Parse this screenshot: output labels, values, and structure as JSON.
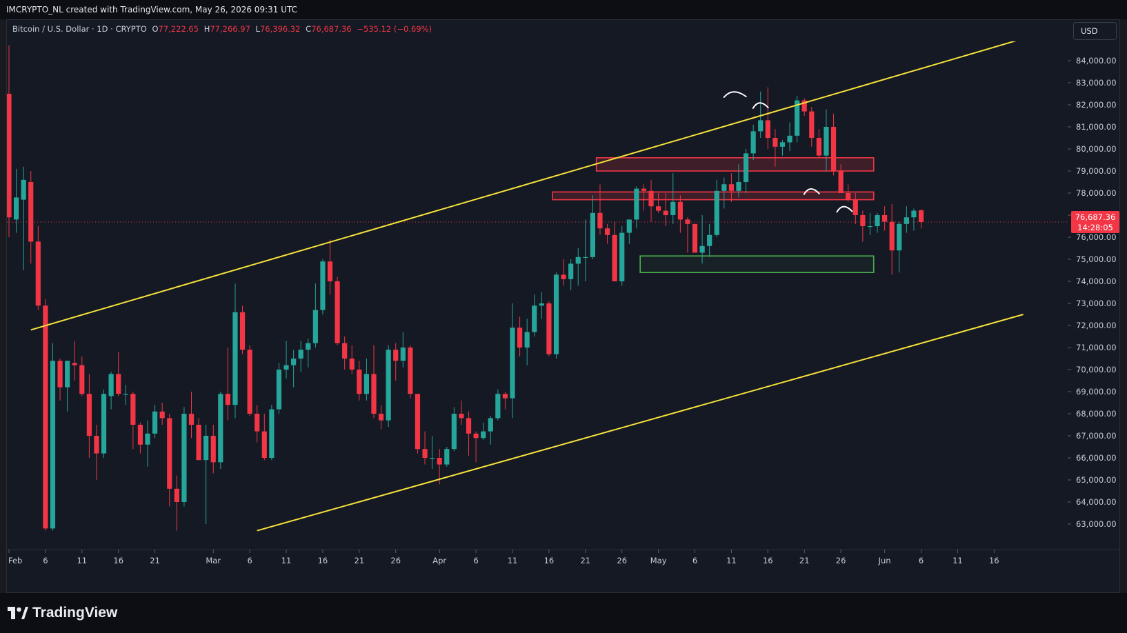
{
  "header": {
    "credit": "IMCRYPTO_NL created with TradingView.com, May 26, 2026 09:31 UTC"
  },
  "legend": {
    "symbol": "Bitcoin / U.S. Dollar · 1D · CRYPTO",
    "open_label": "O",
    "open": "77,222.65",
    "high_label": "H",
    "high": "77,266.97",
    "low_label": "L",
    "low": "76,396.32",
    "close_label": "C",
    "close": "76,687.36",
    "change": "−535.12 (−0.69%)"
  },
  "currency_button": "USD",
  "last_price": {
    "price": "76,687.36",
    "countdown": "14:28:05"
  },
  "footer": {
    "brand": "TradingView"
  },
  "colors": {
    "up": "#26a69a",
    "down": "#f23645",
    "channel": "#f7e33b",
    "resistance": "#f23645",
    "support": "#4caf50",
    "background": "#151924"
  },
  "chart_data": {
    "type": "candlestick",
    "title": "",
    "ylim": [
      62500,
      84600
    ],
    "y_ticks": [
      {
        "v": 63000,
        "label": "63,000.00"
      },
      {
        "v": 64000,
        "label": "64,000.00"
      },
      {
        "v": 65000,
        "label": "65,000.00"
      },
      {
        "v": 66000,
        "label": "66,000.00"
      },
      {
        "v": 67000,
        "label": "67,000.00"
      },
      {
        "v": 68000,
        "label": "68,000.00"
      },
      {
        "v": 69000,
        "label": "69,000.00"
      },
      {
        "v": 70000,
        "label": "70,000.00"
      },
      {
        "v": 71000,
        "label": "71,000.00"
      },
      {
        "v": 72000,
        "label": "72,000.00"
      },
      {
        "v": 73000,
        "label": "73,000.00"
      },
      {
        "v": 74000,
        "label": "74,000.00"
      },
      {
        "v": 75000,
        "label": "75,000.00"
      },
      {
        "v": 76000,
        "label": "76,000.00"
      },
      {
        "v": 77000,
        "label": "77,000.00"
      },
      {
        "v": 78000,
        "label": "78,000.00"
      },
      {
        "v": 79000,
        "label": "79,000.00"
      },
      {
        "v": 80000,
        "label": "80,000.00"
      },
      {
        "v": 81000,
        "label": "81,000.00"
      },
      {
        "v": 82000,
        "label": "82,000.00"
      },
      {
        "v": 83000,
        "label": "83,000.00"
      },
      {
        "v": 84000,
        "label": "84,000.00"
      }
    ],
    "x_ticks": [
      {
        "d": 0,
        "label": "Feb"
      },
      {
        "d": 5,
        "label": "6"
      },
      {
        "d": 10,
        "label": "11"
      },
      {
        "d": 15,
        "label": "16"
      },
      {
        "d": 20,
        "label": "21"
      },
      {
        "d": 28,
        "label": "Mar"
      },
      {
        "d": 33,
        "label": "6"
      },
      {
        "d": 38,
        "label": "11"
      },
      {
        "d": 43,
        "label": "16"
      },
      {
        "d": 48,
        "label": "21"
      },
      {
        "d": 53,
        "label": "26"
      },
      {
        "d": 59,
        "label": "Apr"
      },
      {
        "d": 64,
        "label": "6"
      },
      {
        "d": 69,
        "label": "11"
      },
      {
        "d": 74,
        "label": "16"
      },
      {
        "d": 79,
        "label": "21"
      },
      {
        "d": 84,
        "label": "26"
      },
      {
        "d": 89,
        "label": "May"
      },
      {
        "d": 94,
        "label": "6"
      },
      {
        "d": 99,
        "label": "11"
      },
      {
        "d": 104,
        "label": "16"
      },
      {
        "d": 109,
        "label": "21"
      },
      {
        "d": 114,
        "label": "26"
      },
      {
        "d": 120,
        "label": "Jun"
      },
      {
        "d": 125,
        "label": "6"
      },
      {
        "d": 130,
        "label": "11"
      },
      {
        "d": 135,
        "label": "16"
      }
    ],
    "candles": [
      {
        "o": 82500,
        "h": 84700,
        "l": 76000,
        "c": 76900
      },
      {
        "o": 76800,
        "h": 79100,
        "l": 76200,
        "c": 77800
      },
      {
        "o": 77700,
        "h": 79200,
        "l": 74500,
        "c": 78600
      },
      {
        "o": 78500,
        "h": 79000,
        "l": 74800,
        "c": 75800
      },
      {
        "o": 75800,
        "h": 76500,
        "l": 72700,
        "c": 72900
      },
      {
        "o": 72900,
        "h": 73200,
        "l": 62700,
        "c": 62800
      },
      {
        "o": 62800,
        "h": 71200,
        "l": 62700,
        "c": 70400
      },
      {
        "o": 70400,
        "h": 70500,
        "l": 68600,
        "c": 69200
      },
      {
        "o": 69200,
        "h": 70400,
        "l": 68100,
        "c": 70400
      },
      {
        "o": 70300,
        "h": 71300,
        "l": 69500,
        "c": 70200
      },
      {
        "o": 70200,
        "h": 70600,
        "l": 68800,
        "c": 68900
      },
      {
        "o": 68900,
        "h": 69800,
        "l": 66000,
        "c": 67000
      },
      {
        "o": 67000,
        "h": 67500,
        "l": 65000,
        "c": 66200
      },
      {
        "o": 66200,
        "h": 69100,
        "l": 66000,
        "c": 68900
      },
      {
        "o": 68800,
        "h": 69900,
        "l": 68200,
        "c": 69800
      },
      {
        "o": 69800,
        "h": 70800,
        "l": 68800,
        "c": 68900
      },
      {
        "o": 68900,
        "h": 69300,
        "l": 68400,
        "c": 68900
      },
      {
        "o": 68900,
        "h": 69000,
        "l": 66400,
        "c": 67500
      },
      {
        "o": 67500,
        "h": 67600,
        "l": 66200,
        "c": 66600
      },
      {
        "o": 66600,
        "h": 67700,
        "l": 65600,
        "c": 67100
      },
      {
        "o": 67100,
        "h": 68400,
        "l": 66900,
        "c": 68100
      },
      {
        "o": 68100,
        "h": 68500,
        "l": 67500,
        "c": 67800
      },
      {
        "o": 67800,
        "h": 68000,
        "l": 63800,
        "c": 64600
      },
      {
        "o": 64600,
        "h": 65200,
        "l": 62700,
        "c": 64000
      },
      {
        "o": 64000,
        "h": 68300,
        "l": 63800,
        "c": 68000
      },
      {
        "o": 68000,
        "h": 69000,
        "l": 66900,
        "c": 67500
      },
      {
        "o": 67500,
        "h": 67800,
        "l": 65900,
        "c": 65900
      },
      {
        "o": 65900,
        "h": 67500,
        "l": 63000,
        "c": 67000
      },
      {
        "o": 67000,
        "h": 67500,
        "l": 65300,
        "c": 65800
      },
      {
        "o": 65800,
        "h": 69000,
        "l": 65500,
        "c": 68900
      },
      {
        "o": 68900,
        "h": 71000,
        "l": 67700,
        "c": 68400
      },
      {
        "o": 68400,
        "h": 73900,
        "l": 67800,
        "c": 72600
      },
      {
        "o": 72600,
        "h": 72900,
        "l": 70700,
        "c": 70900
      },
      {
        "o": 70900,
        "h": 71100,
        "l": 67900,
        "c": 68000
      },
      {
        "o": 68000,
        "h": 68400,
        "l": 66700,
        "c": 67200
      },
      {
        "o": 67200,
        "h": 68000,
        "l": 65900,
        "c": 66000
      },
      {
        "o": 66000,
        "h": 68400,
        "l": 65900,
        "c": 68200
      },
      {
        "o": 68200,
        "h": 70300,
        "l": 68000,
        "c": 70000
      },
      {
        "o": 70000,
        "h": 71300,
        "l": 69600,
        "c": 70200
      },
      {
        "o": 70200,
        "h": 70900,
        "l": 69200,
        "c": 70500
      },
      {
        "o": 70500,
        "h": 71300,
        "l": 69900,
        "c": 70900
      },
      {
        "o": 70900,
        "h": 71400,
        "l": 70100,
        "c": 71200
      },
      {
        "o": 71200,
        "h": 73900,
        "l": 71000,
        "c": 72700
      },
      {
        "o": 72700,
        "h": 75000,
        "l": 72500,
        "c": 74900
      },
      {
        "o": 74900,
        "h": 75900,
        "l": 73400,
        "c": 74000
      },
      {
        "o": 74000,
        "h": 74200,
        "l": 71100,
        "c": 71200
      },
      {
        "o": 71200,
        "h": 71500,
        "l": 70000,
        "c": 70500
      },
      {
        "o": 70500,
        "h": 71100,
        "l": 69800,
        "c": 70000
      },
      {
        "o": 70000,
        "h": 70400,
        "l": 68600,
        "c": 68900
      },
      {
        "o": 68900,
        "h": 70500,
        "l": 68600,
        "c": 69800
      },
      {
        "o": 69800,
        "h": 71100,
        "l": 67800,
        "c": 68000
      },
      {
        "o": 68000,
        "h": 68400,
        "l": 67300,
        "c": 67700
      },
      {
        "o": 67700,
        "h": 71100,
        "l": 67400,
        "c": 70900
      },
      {
        "o": 70900,
        "h": 71200,
        "l": 69500,
        "c": 70400
      },
      {
        "o": 70400,
        "h": 71700,
        "l": 70100,
        "c": 71000
      },
      {
        "o": 71000,
        "h": 71100,
        "l": 68700,
        "c": 68900
      },
      {
        "o": 68900,
        "h": 68900,
        "l": 66200,
        "c": 66400
      },
      {
        "o": 66400,
        "h": 67200,
        "l": 65700,
        "c": 66000
      },
      {
        "o": 66000,
        "h": 67000,
        "l": 65500,
        "c": 66000
      },
      {
        "o": 66000,
        "h": 66400,
        "l": 64800,
        "c": 65700
      },
      {
        "o": 65700,
        "h": 66500,
        "l": 65600,
        "c": 66400
      },
      {
        "o": 66400,
        "h": 68300,
        "l": 66300,
        "c": 68000
      },
      {
        "o": 68000,
        "h": 68600,
        "l": 67500,
        "c": 67800
      },
      {
        "o": 67800,
        "h": 68100,
        "l": 66100,
        "c": 67100
      },
      {
        "o": 67100,
        "h": 67200,
        "l": 65800,
        "c": 66900
      },
      {
        "o": 66900,
        "h": 67600,
        "l": 66800,
        "c": 67200
      },
      {
        "o": 67200,
        "h": 67900,
        "l": 66600,
        "c": 67800
      },
      {
        "o": 67800,
        "h": 69100,
        "l": 67700,
        "c": 68900
      },
      {
        "o": 68900,
        "h": 69000,
        "l": 68200,
        "c": 68700
      },
      {
        "o": 68700,
        "h": 73000,
        "l": 67800,
        "c": 71900
      },
      {
        "o": 71900,
        "h": 72400,
        "l": 70600,
        "c": 71000
      },
      {
        "o": 71000,
        "h": 72300,
        "l": 70200,
        "c": 71700
      },
      {
        "o": 71700,
        "h": 73400,
        "l": 71500,
        "c": 72900
      },
      {
        "o": 72900,
        "h": 73500,
        "l": 72300,
        "c": 73000
      },
      {
        "o": 73000,
        "h": 73100,
        "l": 70600,
        "c": 70700
      },
      {
        "o": 70700,
        "h": 74400,
        "l": 70500,
        "c": 74300
      },
      {
        "o": 74300,
        "h": 75000,
        "l": 73800,
        "c": 74100
      },
      {
        "o": 74100,
        "h": 75000,
        "l": 73600,
        "c": 74800
      },
      {
        "o": 74800,
        "h": 75500,
        "l": 73800,
        "c": 75100
      },
      {
        "o": 75100,
        "h": 76800,
        "l": 74000,
        "c": 75100
      },
      {
        "o": 75100,
        "h": 77900,
        "l": 75000,
        "c": 77100
      },
      {
        "o": 77100,
        "h": 78400,
        "l": 76100,
        "c": 76400
      },
      {
        "o": 76400,
        "h": 76600,
        "l": 75700,
        "c": 76100
      },
      {
        "o": 76100,
        "h": 76700,
        "l": 74000,
        "c": 74000
      },
      {
        "o": 74000,
        "h": 76500,
        "l": 73800,
        "c": 76200
      },
      {
        "o": 76200,
        "h": 76800,
        "l": 75700,
        "c": 76800
      },
      {
        "o": 76800,
        "h": 78300,
        "l": 76400,
        "c": 78200
      },
      {
        "o": 78200,
        "h": 78400,
        "l": 77200,
        "c": 78100
      },
      {
        "o": 78100,
        "h": 78600,
        "l": 76700,
        "c": 77400
      },
      {
        "o": 77400,
        "h": 78000,
        "l": 77100,
        "c": 77200
      },
      {
        "o": 77200,
        "h": 78000,
        "l": 76500,
        "c": 77000
      },
      {
        "o": 77000,
        "h": 78900,
        "l": 76600,
        "c": 77600
      },
      {
        "o": 77600,
        "h": 77900,
        "l": 76200,
        "c": 76800
      },
      {
        "o": 76800,
        "h": 76900,
        "l": 75300,
        "c": 76600
      },
      {
        "o": 76600,
        "h": 76600,
        "l": 75300,
        "c": 75300
      },
      {
        "o": 75300,
        "h": 77000,
        "l": 74800,
        "c": 75600
      },
      {
        "o": 75600,
        "h": 76600,
        "l": 75100,
        "c": 76100
      },
      {
        "o": 76100,
        "h": 78600,
        "l": 76000,
        "c": 78100
      },
      {
        "o": 78100,
        "h": 78700,
        "l": 77300,
        "c": 78400
      },
      {
        "o": 78400,
        "h": 78900,
        "l": 77600,
        "c": 78100
      },
      {
        "o": 78100,
        "h": 79300,
        "l": 77800,
        "c": 78500
      },
      {
        "o": 78500,
        "h": 80000,
        "l": 78000,
        "c": 79800
      },
      {
        "o": 79800,
        "h": 81100,
        "l": 79500,
        "c": 80800
      },
      {
        "o": 80800,
        "h": 82600,
        "l": 80500,
        "c": 81300
      },
      {
        "o": 81300,
        "h": 82800,
        "l": 80000,
        "c": 80500
      },
      {
        "o": 80500,
        "h": 80900,
        "l": 79200,
        "c": 80100
      },
      {
        "o": 80100,
        "h": 80400,
        "l": 79700,
        "c": 80300
      },
      {
        "o": 80300,
        "h": 81200,
        "l": 79900,
        "c": 80600
      },
      {
        "o": 80600,
        "h": 82400,
        "l": 80300,
        "c": 82200
      },
      {
        "o": 82200,
        "h": 82300,
        "l": 81500,
        "c": 81700
      },
      {
        "o": 81700,
        "h": 81900,
        "l": 80100,
        "c": 80500
      },
      {
        "o": 80500,
        "h": 80900,
        "l": 79600,
        "c": 79700
      },
      {
        "o": 79700,
        "h": 81800,
        "l": 79000,
        "c": 81000
      },
      {
        "o": 81000,
        "h": 81600,
        "l": 78800,
        "c": 79000
      },
      {
        "o": 79000,
        "h": 79300,
        "l": 78000,
        "c": 78000
      },
      {
        "o": 78000,
        "h": 78400,
        "l": 77600,
        "c": 77700
      },
      {
        "o": 77700,
        "h": 78000,
        "l": 76600,
        "c": 77000
      },
      {
        "o": 77000,
        "h": 77200,
        "l": 75800,
        "c": 76500
      },
      {
        "o": 76500,
        "h": 77100,
        "l": 76100,
        "c": 76500
      },
      {
        "o": 76500,
        "h": 77100,
        "l": 76200,
        "c": 77000
      },
      {
        "o": 77000,
        "h": 77400,
        "l": 76300,
        "c": 76700
      },
      {
        "o": 76700,
        "h": 77500,
        "l": 74300,
        "c": 75400
      },
      {
        "o": 75400,
        "h": 76700,
        "l": 74400,
        "c": 76600
      },
      {
        "o": 76600,
        "h": 77400,
        "l": 76200,
        "c": 76900
      },
      {
        "o": 76900,
        "h": 77300,
        "l": 76300,
        "c": 77200
      },
      {
        "o": 77222.65,
        "h": 77266.97,
        "l": 76396.32,
        "c": 76687.36
      }
    ],
    "channel_upper": [
      {
        "d": 3,
        "v": 71800
      },
      {
        "d": 139,
        "v": 85000
      }
    ],
    "channel_lower": [
      {
        "d": 34,
        "v": 62700
      },
      {
        "d": 139,
        "v": 72500
      }
    ],
    "zones": [
      {
        "kind": "resistance",
        "d0": 80.5,
        "d1": 118.5,
        "lo": 79000,
        "hi": 79600
      },
      {
        "kind": "resistance",
        "d0": 74.5,
        "d1": 118.5,
        "lo": 77700,
        "hi": 78050
      },
      {
        "kind": "support",
        "d0": 86.5,
        "d1": 118.5,
        "lo": 74400,
        "hi": 75150
      }
    ],
    "arcs": [
      {
        "d": 99.5,
        "v": 82500
      },
      {
        "d": 103,
        "v": 82000
      },
      {
        "d": 110,
        "v": 78100
      },
      {
        "d": 114.5,
        "v": 77300
      }
    ],
    "last_price": 76687.36
  }
}
